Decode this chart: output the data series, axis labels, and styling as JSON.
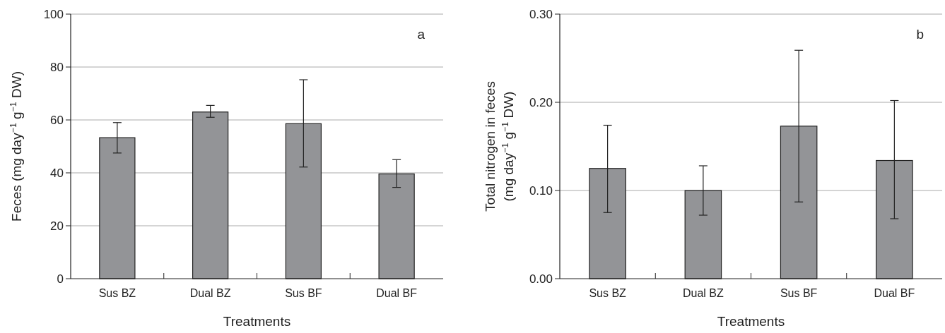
{
  "chart_data": [
    {
      "type": "bar",
      "xlabel": "Treatments",
      "ylabel": "Feces (mg day$^{−1}$ g$^{−1}$ DW)",
      "annotations": [
        "a"
      ],
      "categories": [
        "Sus BZ",
        "Dual BZ",
        "Sus BF",
        "Dual BF"
      ],
      "values": [
        53.3,
        63,
        58.6,
        39.6
      ],
      "errors": [
        [
          47.5,
          59
        ],
        [
          61,
          65.5
        ],
        [
          42.2,
          75.2
        ],
        [
          34.5,
          45
        ]
      ],
      "color": "#939497",
      "ylim": [
        0,
        100
      ],
      "yticks": [
        0,
        20,
        40,
        60,
        80,
        100
      ],
      "grid": "y"
    },
    {
      "type": "bar",
      "xlabel": "Treatments",
      "ylabel": "Total nitrogen in feces\n(mg  day$^{−1}$ g$^{−1}$ DW)",
      "annotations": [
        "b"
      ],
      "categories": [
        "Sus BZ",
        "Dual BZ",
        "Sus BF",
        "Dual BF"
      ],
      "values": [
        0.125,
        0.1,
        0.173,
        0.134
      ],
      "errors": [
        [
          0.075,
          0.174
        ],
        [
          0.072,
          0.128
        ],
        [
          0.087,
          0.259
        ],
        [
          0.068,
          0.202
        ]
      ],
      "color": "#939497",
      "ylim": [
        0,
        0.3
      ],
      "yticks": [
        {
          "value": 0,
          "label": "0.00"
        },
        {
          "value": 0.1,
          "label": "0.10"
        },
        {
          "value": 0.2,
          "label": "0.20"
        },
        {
          "value": 0.3,
          "label": "0.30"
        }
      ],
      "grid": "y"
    }
  ]
}
